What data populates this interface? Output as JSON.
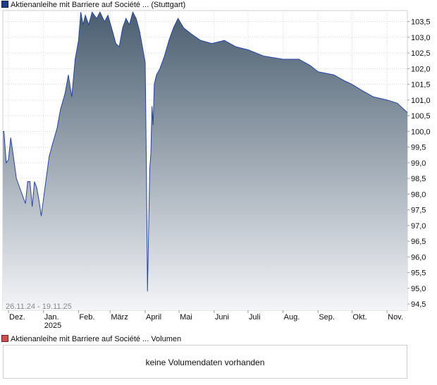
{
  "price_legend": {
    "label": "Aktienanleihe mit Barriere auf Société ... (Stuttgart)",
    "swatch_color": "#1f3c88"
  },
  "volume_legend": {
    "label": "Aktienanleihe mit Barriere auf Société ... Volumen",
    "swatch_color": "#d05050"
  },
  "volume_panel": {
    "message": "keine Volumendaten vorhanden"
  },
  "chart_data": {
    "type": "area",
    "title": "",
    "date_range_label": "26.11.24 - 19.11.25",
    "x_start": "2024-11-26",
    "x_end": "2025-11-19",
    "xlabel": "",
    "ylabel": "",
    "ylim": [
      94.3,
      103.85
    ],
    "y_ticks": [
      "94,5",
      "95,0",
      "95,5",
      "96,0",
      "96,5",
      "97,0",
      "97,5",
      "98,0",
      "98,5",
      "99,0",
      "99,5",
      "100,0",
      "100,5",
      "101,0",
      "101,5",
      "102,0",
      "102,5",
      "103,0",
      "103,5"
    ],
    "x_ticks": [
      {
        "date": "2024-12-01",
        "label": "Dez."
      },
      {
        "date": "2025-01-01",
        "label": "Jan.",
        "sublabel": "2025"
      },
      {
        "date": "2025-02-01",
        "label": "Feb."
      },
      {
        "date": "2025-03-01",
        "label": "März"
      },
      {
        "date": "2025-04-01",
        "label": "April"
      },
      {
        "date": "2025-05-01",
        "label": "Mai"
      },
      {
        "date": "2025-06-01",
        "label": "Juni"
      },
      {
        "date": "2025-07-01",
        "label": "Juli"
      },
      {
        "date": "2025-08-01",
        "label": "Aug."
      },
      {
        "date": "2025-09-01",
        "label": "Sep."
      },
      {
        "date": "2025-10-01",
        "label": "Okt."
      },
      {
        "date": "2025-11-01",
        "label": "Nov."
      }
    ],
    "grid": true,
    "line_color": "#2445a8",
    "fill_top_color": "#4a5e70",
    "fill_bottom_color": "#f4f5f8",
    "series": [
      {
        "points": [
          [
            "2024-11-26",
            100.0
          ],
          [
            "2024-11-27",
            100.0
          ],
          [
            "2024-11-28",
            99.5
          ],
          [
            "2024-11-29",
            99.0
          ],
          [
            "2024-12-01",
            99.1
          ],
          [
            "2024-12-03",
            99.8
          ],
          [
            "2024-12-05",
            99.3
          ],
          [
            "2024-12-08",
            98.5
          ],
          [
            "2024-12-12",
            98.1
          ],
          [
            "2024-12-16",
            97.7
          ],
          [
            "2024-12-18",
            98.4
          ],
          [
            "2024-12-20",
            98.4
          ],
          [
            "2024-12-22",
            97.6
          ],
          [
            "2024-12-24",
            98.4
          ],
          [
            "2024-12-26",
            98.2
          ],
          [
            "2024-12-28",
            97.8
          ],
          [
            "2024-12-30",
            97.3
          ],
          [
            "2025-01-03",
            98.4
          ],
          [
            "2025-01-06",
            99.2
          ],
          [
            "2025-01-09",
            99.6
          ],
          [
            "2025-01-13",
            100.1
          ],
          [
            "2025-01-16",
            100.7
          ],
          [
            "2025-01-20",
            101.2
          ],
          [
            "2025-01-23",
            101.8
          ],
          [
            "2025-01-26",
            101.1
          ],
          [
            "2025-01-29",
            102.3
          ],
          [
            "2025-02-01",
            102.9
          ],
          [
            "2025-02-03",
            103.8
          ],
          [
            "2025-02-05",
            103.4
          ],
          [
            "2025-02-07",
            103.7
          ],
          [
            "2025-02-10",
            103.4
          ],
          [
            "2025-02-13",
            103.8
          ],
          [
            "2025-02-17",
            103.6
          ],
          [
            "2025-02-20",
            103.8
          ],
          [
            "2025-02-24",
            103.5
          ],
          [
            "2025-02-27",
            103.7
          ],
          [
            "2025-03-03",
            103.2
          ],
          [
            "2025-03-06",
            102.8
          ],
          [
            "2025-03-09",
            102.7
          ],
          [
            "2025-03-12",
            103.3
          ],
          [
            "2025-03-15",
            103.6
          ],
          [
            "2025-03-18",
            103.4
          ],
          [
            "2025-03-21",
            103.8
          ],
          [
            "2025-03-24",
            103.6
          ],
          [
            "2025-03-27",
            103.2
          ],
          [
            "2025-03-30",
            102.6
          ],
          [
            "2025-04-01",
            102.2
          ],
          [
            "2025-04-02",
            99.0
          ],
          [
            "2025-04-03",
            94.9
          ],
          [
            "2025-04-04",
            96.8
          ],
          [
            "2025-04-05",
            98.8
          ],
          [
            "2025-04-06",
            99.3
          ],
          [
            "2025-04-07",
            100.8
          ],
          [
            "2025-04-08",
            100.2
          ],
          [
            "2025-04-09",
            101.5
          ],
          [
            "2025-04-11",
            101.8
          ],
          [
            "2025-04-14",
            102.0
          ],
          [
            "2025-04-18",
            102.4
          ],
          [
            "2025-04-22",
            102.9
          ],
          [
            "2025-04-26",
            103.3
          ],
          [
            "2025-04-30",
            103.6
          ],
          [
            "2025-05-05",
            103.3
          ],
          [
            "2025-05-12",
            103.1
          ],
          [
            "2025-05-20",
            102.9
          ],
          [
            "2025-05-30",
            102.8
          ],
          [
            "2025-06-10",
            102.9
          ],
          [
            "2025-06-20",
            102.7
          ],
          [
            "2025-07-01",
            102.6
          ],
          [
            "2025-07-15",
            102.4
          ],
          [
            "2025-08-01",
            102.3
          ],
          [
            "2025-08-15",
            102.3
          ],
          [
            "2025-08-25",
            102.1
          ],
          [
            "2025-09-01",
            101.9
          ],
          [
            "2025-09-15",
            101.8
          ],
          [
            "2025-09-25",
            101.6
          ],
          [
            "2025-10-01",
            101.5
          ],
          [
            "2025-10-10",
            101.3
          ],
          [
            "2025-10-20",
            101.1
          ],
          [
            "2025-11-01",
            101.0
          ],
          [
            "2025-11-10",
            100.9
          ],
          [
            "2025-11-19",
            100.6
          ]
        ]
      }
    ]
  }
}
